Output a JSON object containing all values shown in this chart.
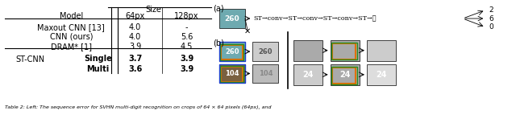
{
  "table_title": "Size",
  "col_headers": [
    "Model",
    "64px",
    "128px"
  ],
  "rows": [
    {
      "model": "Maxout CNN [13]",
      "sub": "",
      "v64": "4.0",
      "v128": "-",
      "bold": false
    },
    {
      "model": "CNN (ours)",
      "sub": "",
      "v64": "4.0",
      "v128": "5.6",
      "bold": false
    },
    {
      "model": "DRAM* [1]",
      "sub": "",
      "v64": "3.9",
      "v128": "4.5",
      "bold": false
    },
    {
      "model": "ST-CNN",
      "sub": "Single",
      "v64": "3.7",
      "v128": "3.9",
      "bold": true
    },
    {
      "model": "ST-CNN",
      "sub": "Multi",
      "v64": "3.6",
      "v128": "3.9",
      "bold": true
    }
  ],
  "arch_text": "ST→conv→ST→conv→ST→conv→ST→⋯",
  "output_labels": [
    "2",
    "6",
    "0"
  ],
  "caption": "Table 2: Left: The sequence error for SVHN multi-digit recognition on crops of 64 × 64 pixels (64px), and",
  "bg_color": "#ffffff"
}
